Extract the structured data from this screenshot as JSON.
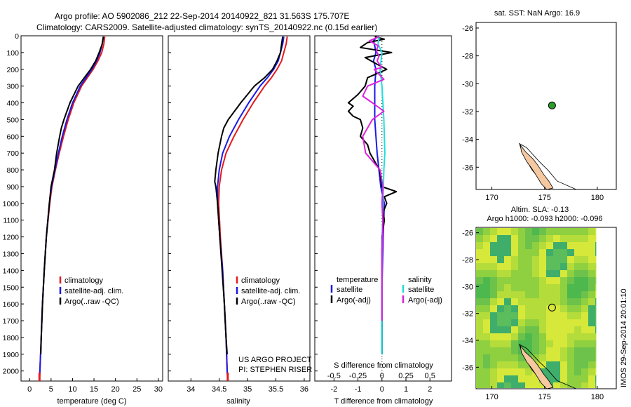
{
  "header": {
    "line1": "Argo profile: AO 5902086_212 22-Sep-2014 20140922_821 31.563S 175.707E",
    "line2": "Climatology: CARS2009. Satellite-adjusted climatology: synTS_20140922.nc (0.15d earlier)"
  },
  "colors": {
    "clim": "#e41a1c",
    "sat": "#1a1ae6",
    "argo": "#000000",
    "sat_sal": "#22dddd",
    "argo_sal": "#dd22dd",
    "land": "#f5c8a0"
  },
  "depth_axis": {
    "ticks": [
      0,
      100,
      200,
      300,
      400,
      500,
      600,
      700,
      800,
      900,
      1000,
      1100,
      1200,
      1300,
      1400,
      1500,
      1600,
      1700,
      1800,
      1900,
      2000
    ],
    "range": [
      0,
      2060
    ]
  },
  "chart_data": [
    {
      "type": "line",
      "id": "temperature",
      "xlabel": "temperature (deg C)",
      "xlim": [
        -2,
        31
      ],
      "xticks": [
        0,
        5,
        10,
        15,
        20,
        25,
        30
      ],
      "legend": [
        "climatology",
        "satellite-adj. clim.",
        "Argo(..raw -QC)"
      ],
      "series": [
        {
          "name": "climatology",
          "depth": [
            5,
            50,
            100,
            150,
            200,
            300,
            400,
            500,
            600,
            700,
            800,
            900,
            1000,
            1200,
            1400,
            1600,
            1800,
            2000,
            2050
          ],
          "values": [
            17.5,
            17.3,
            16.8,
            15.9,
            14.8,
            12.1,
            10.3,
            9.0,
            7.9,
            6.9,
            6.0,
            5.2,
            4.7,
            3.9,
            3.4,
            3.0,
            2.7,
            2.4,
            2.3
          ]
        },
        {
          "name": "satellite-adj. clim.",
          "depth": [
            5,
            50,
            100,
            150,
            200,
            300,
            400,
            500,
            600,
            700,
            800,
            900,
            1000,
            1200,
            1400,
            1600,
            1800,
            2000,
            2050
          ],
          "values": [
            17.2,
            16.9,
            16.4,
            15.6,
            14.5,
            11.8,
            10.0,
            8.7,
            7.6,
            6.7,
            5.9,
            5.1,
            4.6,
            3.9,
            3.4,
            3.0,
            2.7,
            2.4,
            2.3
          ]
        },
        {
          "name": "Argo(..raw -QC)",
          "depth": [
            5,
            50,
            100,
            150,
            200,
            300,
            400,
            500,
            550,
            600,
            700,
            800,
            900,
            1000,
            1200,
            1400,
            1600,
            1800,
            1900
          ],
          "values": [
            17.2,
            16.9,
            16.2,
            15.4,
            14.2,
            11.3,
            9.4,
            8.0,
            7.4,
            7.0,
            6.3,
            5.8,
            5.0,
            4.6,
            3.9,
            3.4,
            3.0,
            2.7,
            2.6
          ]
        }
      ]
    },
    {
      "type": "line",
      "id": "salinity",
      "xlabel": "salinity",
      "xlim": [
        33.6,
        36.1
      ],
      "xticks": [
        34,
        34.5,
        35,
        35.5,
        36
      ],
      "legend": [
        "climatology",
        "satellite-adj. clim.",
        "Argo(..raw -QC)"
      ],
      "credit": [
        "US ARGO PROJECT",
        "PI: STEPHEN RISER"
      ],
      "series": [
        {
          "name": "climatology",
          "depth": [
            5,
            50,
            100,
            150,
            200,
            250,
            300,
            400,
            500,
            600,
            700,
            800,
            900,
            1000,
            1200,
            1400,
            1600,
            1800,
            2000,
            2050
          ],
          "values": [
            35.7,
            35.68,
            35.64,
            35.6,
            35.52,
            35.42,
            35.3,
            35.1,
            34.92,
            34.76,
            34.62,
            34.54,
            34.5,
            34.49,
            34.52,
            34.56,
            34.59,
            34.62,
            34.64,
            34.65
          ]
        },
        {
          "name": "satellite-adj. clim.",
          "depth": [
            5,
            50,
            100,
            150,
            200,
            250,
            300,
            400,
            500,
            600,
            700,
            800,
            900,
            1000,
            1200,
            1400,
            1600,
            1800,
            2000,
            2050
          ],
          "values": [
            35.64,
            35.62,
            35.58,
            35.54,
            35.46,
            35.35,
            35.22,
            35.02,
            34.84,
            34.68,
            34.56,
            34.5,
            34.47,
            34.47,
            34.51,
            34.56,
            34.59,
            34.62,
            34.64,
            34.65
          ]
        },
        {
          "name": "Argo(..raw -QC)",
          "depth": [
            5,
            50,
            100,
            150,
            200,
            250,
            300,
            400,
            500,
            550,
            600,
            700,
            800,
            870,
            900,
            1000,
            1200,
            1400,
            1600,
            1800,
            1900
          ],
          "values": [
            35.62,
            35.6,
            35.58,
            35.52,
            35.44,
            35.3,
            35.12,
            34.88,
            34.66,
            34.58,
            34.54,
            34.48,
            34.44,
            34.42,
            34.44,
            34.47,
            34.51,
            34.55,
            34.59,
            34.62,
            34.64
          ]
        }
      ]
    },
    {
      "type": "line",
      "id": "differences",
      "xlabel": "T difference from climatology",
      "top_label": "S difference from climatology",
      "top_ticks": [
        "-0.5",
        "-0.25",
        "0",
        "0.25",
        "0.5"
      ],
      "xlim": [
        -2.8,
        2.9
      ],
      "xticks": [
        -2,
        -1,
        0,
        1,
        2
      ],
      "legend_temperature": [
        "temperature",
        "satellite",
        "Argo(-adj)"
      ],
      "legend_salinity": [
        "salinity",
        "satellite",
        "Argo(-adj)"
      ],
      "series": [
        {
          "name": "temperature satellite",
          "depth": [
            5,
            30,
            60,
            100,
            150,
            200,
            300,
            500,
            700,
            900,
            1000,
            1200,
            1500,
            1800,
            1900
          ],
          "values": [
            -0.2,
            -0.35,
            -0.3,
            -0.25,
            -0.35,
            -0.25,
            -0.3,
            -0.3,
            -0.2,
            -0.05,
            0.1,
            0.05,
            0.0,
            0.0,
            0.0
          ]
        },
        {
          "name": "temperature Argo(-adj)",
          "depth": [
            5,
            20,
            40,
            70,
            100,
            130,
            170,
            200,
            250,
            300,
            350,
            400,
            420,
            450,
            480,
            500,
            550,
            600,
            650,
            700,
            750,
            800,
            850,
            900,
            930,
            960,
            1000,
            1050,
            1100,
            1200,
            1300,
            1500,
            1700,
            1900
          ],
          "values": [
            -0.3,
            0.1,
            -0.6,
            -0.9,
            0.4,
            -0.7,
            -0.2,
            0.2,
            -0.6,
            -0.7,
            -1.0,
            -1.4,
            -1.2,
            -1.4,
            -1.2,
            -0.9,
            -0.8,
            -0.9,
            -0.6,
            -0.5,
            -0.3,
            -0.1,
            -0.05,
            0.0,
            0.6,
            0.1,
            0.2,
            0.05,
            0.1,
            0.0,
            0.0,
            0.0,
            0.0,
            0.0
          ]
        },
        {
          "name": "salinity satellite",
          "depth": [
            5,
            50,
            100,
            200,
            300,
            500,
            700,
            800,
            1000,
            1300,
            1600,
            1900
          ],
          "values": [
            -0.03,
            -0.04,
            0.0,
            -0.02,
            0.0,
            0.02,
            0.03,
            0.02,
            0.01,
            0.0,
            0.0,
            0.0
          ]
        },
        {
          "name": "salinity Argo(-adj)",
          "depth": [
            5,
            30,
            60,
            90,
            120,
            150,
            190,
            200,
            260,
            300,
            360,
            400,
            450,
            500,
            600,
            700,
            800,
            900,
            1000,
            1100,
            1300,
            1500,
            1700
          ],
          "values": [
            -0.03,
            -0.13,
            -0.04,
            -0.06,
            -0.03,
            -0.05,
            0.0,
            -0.08,
            0.02,
            -0.15,
            -0.2,
            -0.1,
            0.02,
            -0.1,
            -0.2,
            -0.17,
            -0.02,
            0.01,
            0.0,
            0.01,
            0.0,
            0.0,
            0.0
          ]
        }
      ]
    },
    {
      "type": "scatter",
      "id": "map-sst",
      "title": "sat. SST: NaN Argo: 16.9",
      "xlim": [
        168.5,
        181.8
      ],
      "ylim": [
        -37.6,
        -25.6
      ],
      "xticks": [
        170,
        175,
        180
      ],
      "yticks": [
        -26,
        -28,
        -30,
        -32,
        -34,
        -36
      ],
      "points": [
        {
          "lon": 175.707,
          "lat": -31.563
        }
      ]
    },
    {
      "type": "heatmap",
      "id": "map-sla",
      "title": "Altim. SLA: -0.13",
      "subtitle": "Argo h1000: -0.093 h2000: -0.096",
      "xlim": [
        168.5,
        181.8
      ],
      "ylim": [
        -37.6,
        -25.6
      ],
      "xticks": [
        170,
        175,
        180
      ],
      "yticks": [
        -26,
        -28,
        -30,
        -32,
        -34,
        -36
      ],
      "points": [
        {
          "lon": 175.707,
          "lat": -31.563
        }
      ]
    }
  ],
  "footer_stamp": "IMOS 29-Sep-2014 20:01:10"
}
